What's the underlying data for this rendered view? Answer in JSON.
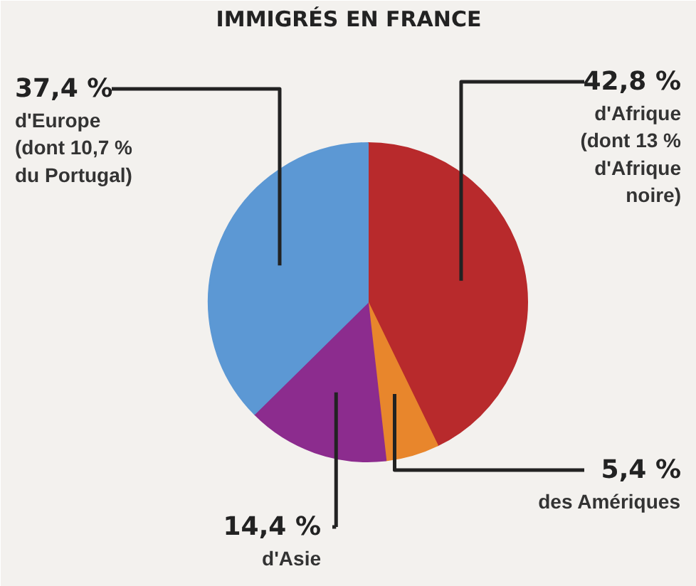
{
  "chart_data": {
    "type": "pie",
    "title": "IMMIGRÉS EN FRANCE",
    "categories": [
      "d'Afrique\n(dont 13 %\nd'Afrique\nnoire)",
      "des Amériques",
      "d'Asie",
      "d'Europe\n(dont 10,7 %\ndu Portugal)"
    ],
    "values": [
      42.8,
      5.4,
      14.4,
      37.4
    ],
    "value_labels": [
      "42,8 %",
      "5,4 %",
      "14,4 %",
      "37,4 %"
    ],
    "colors": [
      "#b82a2c",
      "#e8862c",
      "#8c2c8e",
      "#5c98d4"
    ]
  }
}
